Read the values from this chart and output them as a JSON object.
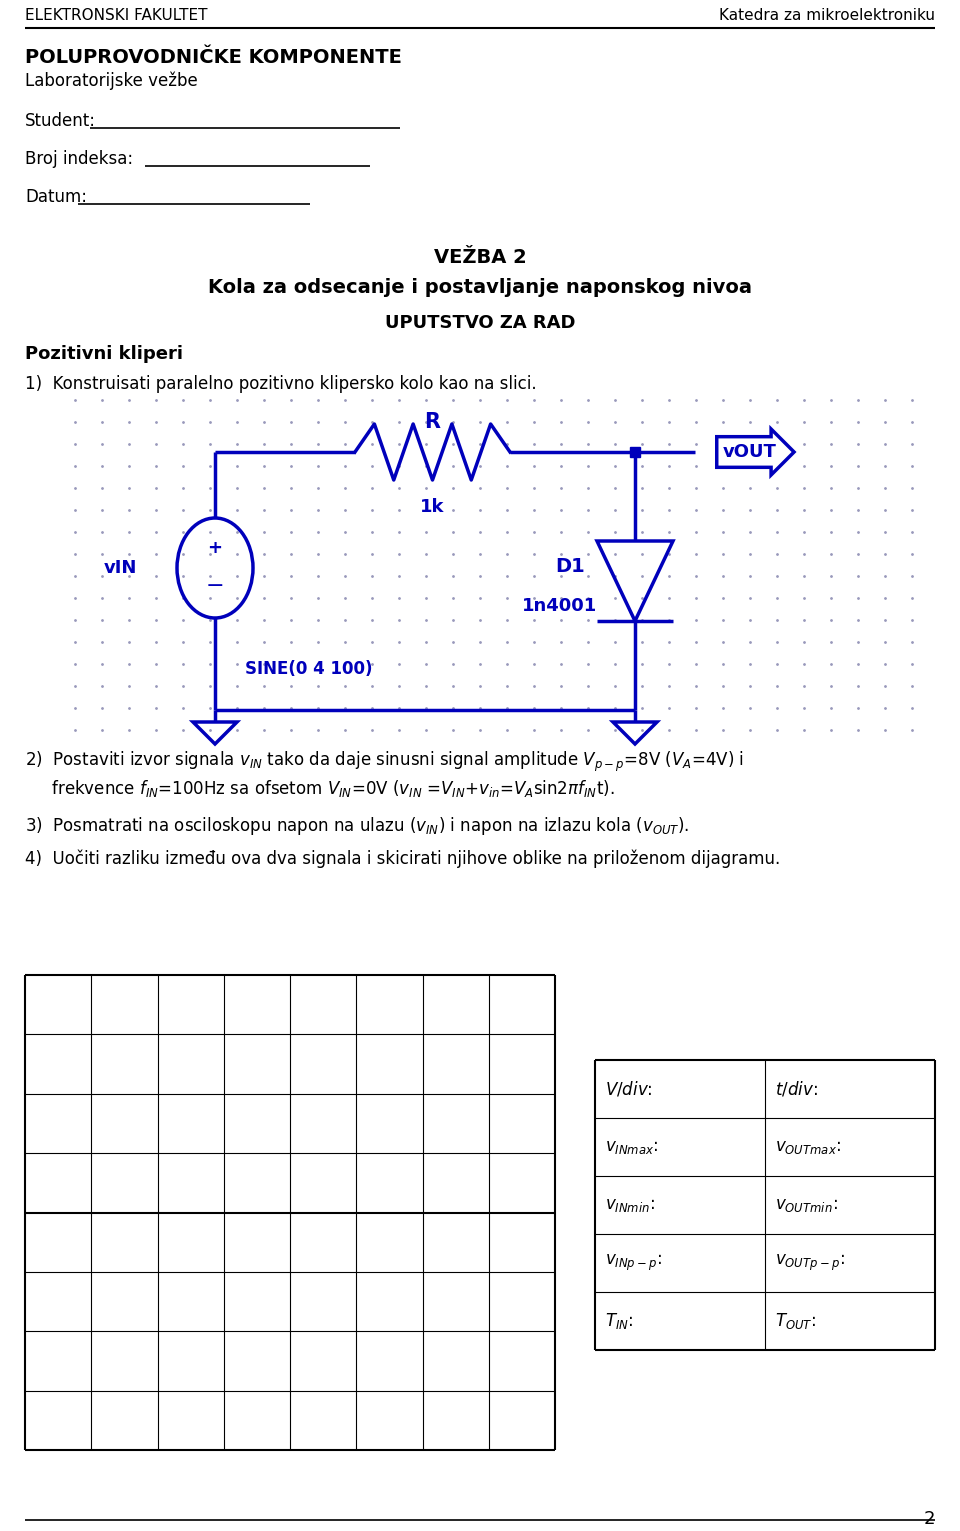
{
  "header_left": "ELEKTRONSKI FAKULTET",
  "header_right": "Katedra za mikroelektroniku",
  "title_bold": "POLUPROVODNIČKE KOMPONENTE",
  "title_sub": "Laboratorijske vežbe",
  "student_label": "Student:",
  "indeksa_label": "Broj indeksa:",
  "datum_label": "Datum:",
  "vezba_title": "VEŽBA 2",
  "main_title": "Kola za odsecanje i postavljanje naponskog nivoa",
  "uputstvo": "UPUTSTVO ZA RAD",
  "pozitivni": "Pozitivni kliperi",
  "item1": "1)  Konstruisati paralelno pozitivno klipersko kolo kao na slici.",
  "bg_color": "#ffffff",
  "blue_color": "#0000bb",
  "page_number": "2"
}
